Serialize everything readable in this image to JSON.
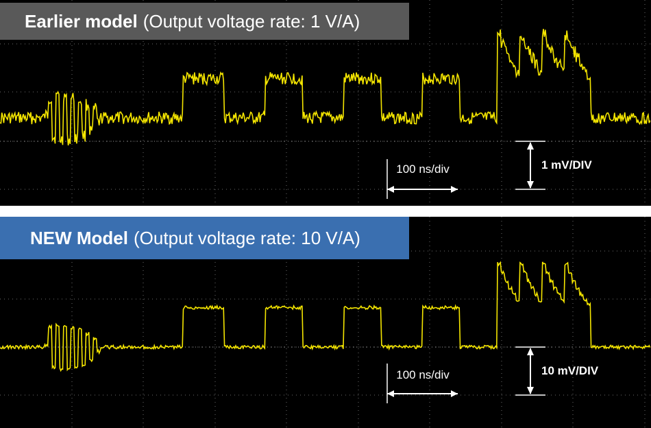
{
  "panels": [
    {
      "id": "top",
      "title_bold": "Earlier model",
      "title_rest": "(Output voltage rate: 1 V/A)",
      "time_label": "100 ns/div",
      "volt_label": "1 mV/DIV",
      "banner_color": "#595959"
    },
    {
      "id": "bottom",
      "title_bold": "NEW Model",
      "title_rest": "(Output voltage rate: 10 V/A)",
      "time_label": "100 ns/div",
      "volt_label": "10 mV/DIV",
      "banner_color": "#3a6fb0"
    }
  ],
  "colors": {
    "trace": "#f5e600",
    "grid": "#6e6e6e",
    "background": "#000000",
    "annotation": "#ffffff"
  },
  "chart_data": [
    {
      "type": "line",
      "title": "Earlier model (Output voltage rate: 1 V/A)",
      "x_scale": "100 ns/div",
      "y_scale": "1 mV/DIV",
      "grid": true,
      "series": [
        {
          "values": [
            0,
            0,
            0,
            0,
            0,
            0,
            0,
            0,
            0,
            0,
            0,
            0,
            0.1,
            0.9,
            -0.9,
            1.0,
            -1.0,
            1.0,
            -1.0,
            0.9,
            -0.9,
            0.8,
            -0.8,
            0.6,
            -0.6,
            0.4,
            -0.2,
            0,
            0,
            0,
            0,
            0,
            0,
            0,
            0,
            0,
            0,
            0,
            0,
            0,
            0,
            0,
            0,
            0,
            0,
            0,
            0,
            0,
            0,
            1.8,
            1.8,
            1.8,
            1.8,
            1.8,
            1.8,
            1.8,
            1.8,
            1.8,
            1.8,
            1.8,
            0,
            0,
            0,
            0,
            0,
            0,
            0,
            0,
            0,
            0,
            0,
            1.8,
            1.8,
            1.8,
            1.8,
            1.8,
            1.8,
            1.8,
            1.8,
            1.8,
            1.8,
            0,
            0,
            0,
            0,
            0,
            0,
            0,
            0,
            0,
            0,
            0,
            1.8,
            1.8,
            1.8,
            1.8,
            1.8,
            1.8,
            1.8,
            1.8,
            1.8,
            1.8,
            0,
            0,
            0,
            0,
            0,
            0,
            0,
            0,
            0,
            0,
            0,
            1.8,
            1.8,
            1.8,
            1.8,
            1.8,
            1.8,
            1.8,
            1.8,
            1.8,
            1.8,
            0,
            0,
            0,
            0,
            0,
            0,
            0,
            0,
            0,
            0,
            3.8,
            3.4,
            3.0,
            2.7,
            2.4,
            2.1,
            3.8,
            3.4,
            3.0,
            2.7,
            2.4,
            2.1,
            3.8,
            3.4,
            3.0,
            2.7,
            2.4,
            2.1,
            3.8,
            3.4,
            3.0,
            2.7,
            2.4,
            2.1,
            1.9,
            0,
            0,
            0,
            0,
            0,
            0,
            0,
            0,
            0,
            0,
            0,
            0,
            0,
            0,
            0,
            0
          ]
        }
      ]
    },
    {
      "type": "line",
      "title": "NEW Model (Output voltage rate: 10 V/A)",
      "x_scale": "100 ns/div",
      "y_scale": "10 mV/DIV",
      "grid": true,
      "series": [
        {
          "values": [
            0,
            0,
            0,
            0,
            0,
            0,
            0,
            0,
            0,
            0,
            0,
            0,
            0.1,
            0.9,
            -0.9,
            1.0,
            -1.0,
            1.0,
            -1.0,
            0.9,
            -0.9,
            0.8,
            -0.8,
            0.6,
            -0.6,
            0.4,
            -0.2,
            0,
            0,
            0,
            0,
            0,
            0,
            0,
            0,
            0,
            0,
            0,
            0,
            0,
            0,
            0,
            0,
            0,
            0,
            0,
            0,
            0,
            0,
            1.8,
            1.8,
            1.8,
            1.8,
            1.8,
            1.8,
            1.8,
            1.8,
            1.8,
            1.8,
            1.8,
            0,
            0,
            0,
            0,
            0,
            0,
            0,
            0,
            0,
            0,
            0,
            1.8,
            1.8,
            1.8,
            1.8,
            1.8,
            1.8,
            1.8,
            1.8,
            1.8,
            1.8,
            0,
            0,
            0,
            0,
            0,
            0,
            0,
            0,
            0,
            0,
            0,
            1.8,
            1.8,
            1.8,
            1.8,
            1.8,
            1.8,
            1.8,
            1.8,
            1.8,
            1.8,
            0,
            0,
            0,
            0,
            0,
            0,
            0,
            0,
            0,
            0,
            0,
            1.8,
            1.8,
            1.8,
            1.8,
            1.8,
            1.8,
            1.8,
            1.8,
            1.8,
            1.8,
            0,
            0,
            0,
            0,
            0,
            0,
            0,
            0,
            0,
            0,
            3.8,
            3.4,
            3.0,
            2.7,
            2.4,
            2.1,
            3.8,
            3.4,
            3.0,
            2.7,
            2.4,
            2.1,
            3.8,
            3.4,
            3.0,
            2.7,
            2.4,
            2.1,
            3.8,
            3.4,
            3.0,
            2.7,
            2.4,
            2.1,
            1.9,
            0,
            0,
            0,
            0,
            0,
            0,
            0,
            0,
            0,
            0,
            0,
            0,
            0,
            0,
            0,
            0
          ]
        }
      ]
    }
  ]
}
